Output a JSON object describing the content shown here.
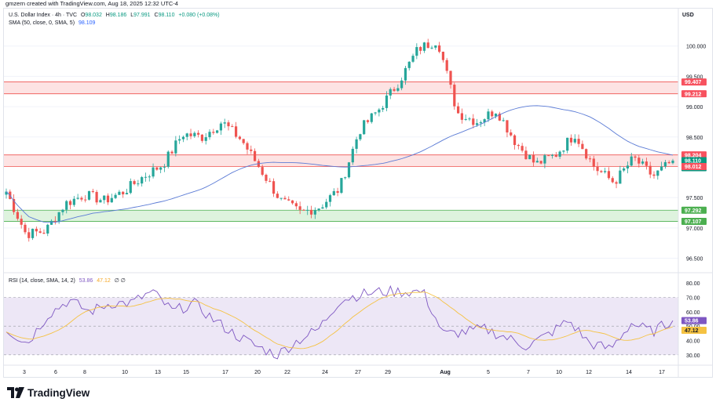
{
  "header": {
    "credit": "gmzern created with TradingView.com, Aug 18, 2025 12:32 UTC-4"
  },
  "legend": {
    "title": "U.S. Dollar Index · 4h · TVC",
    "o_label": "O",
    "o": "98.032",
    "h_label": "H",
    "h": "98.186",
    "l_label": "L",
    "l": "97.991",
    "c_label": "C",
    "c": "98.110",
    "change": "+0.080 (+0.08%)",
    "sma_label": "SMA (50, close, 0, SMA, 5)",
    "sma_value": "98.109",
    "rsi_label": "RSI (14, close, SMA, 14, 2)",
    "rsi_value": "53.86",
    "rsi_ma_value": "47.12",
    "rsi_extra": "∅ ∅"
  },
  "price_axis": {
    "currency": "USD",
    "ticks": [
      "100.000",
      "99.500",
      "99.000",
      "98.500",
      "97.500",
      "97.000",
      "96.500"
    ],
    "tags": [
      {
        "text": "99.407",
        "kind": "red"
      },
      {
        "text": "99.212",
        "kind": "red"
      },
      {
        "text": "98.204",
        "kind": "red"
      },
      {
        "text": "98.110",
        "kind": "last"
      },
      {
        "text": "27:46",
        "kind": "timer"
      },
      {
        "text": "98.012",
        "kind": "red"
      },
      {
        "text": "97.292",
        "kind": "green"
      },
      {
        "text": "97.107",
        "kind": "green"
      }
    ]
  },
  "rsi_axis": {
    "ticks": [
      "80.00",
      "70.00",
      "60.00",
      "50.00",
      "40.00",
      "30.00"
    ]
  },
  "time_axis": {
    "labels": [
      "3",
      "6",
      "8",
      "10",
      "13",
      "15",
      "17",
      "20",
      "22",
      "24",
      "27",
      "29",
      "Aug",
      "5",
      "7",
      "10",
      "12",
      "14",
      "17"
    ]
  },
  "colors": {
    "up": "#26a69a",
    "down": "#ef5350",
    "sma": "#5b7bd5",
    "rsi": "#7e57c2",
    "rsi_ma": "#f5c242",
    "resistance_fill": "#fcdcdc",
    "resistance_line": "#ef5350",
    "support_fill": "#d6f0d6",
    "support_line": "#4caf50",
    "rsi_band": "#ede7f6"
  },
  "zones": [
    {
      "kind": "resistance",
      "top": 99.407,
      "bottom": 99.212
    },
    {
      "kind": "resistance",
      "top": 98.204,
      "bottom": 98.012
    },
    {
      "kind": "support",
      "top": 97.292,
      "bottom": 97.107
    }
  ],
  "chart_data": {
    "type": "candlestick",
    "symbol": "U.S. Dollar Index",
    "interval": "4h",
    "ylim": [
      96.3,
      100.5
    ],
    "rsi_ylim": [
      25,
      85
    ],
    "anchors": [
      {
        "day": "Jul 2",
        "price": 97.6
      },
      {
        "day": "Jul 3",
        "price": 96.9
      },
      {
        "day": "Jul 4",
        "price": 96.95
      },
      {
        "day": "Jul 7",
        "price": 97.4
      },
      {
        "day": "Jul 8",
        "price": 97.55
      },
      {
        "day": "Jul 9",
        "price": 97.45
      },
      {
        "day": "Jul 10",
        "price": 97.6
      },
      {
        "day": "Jul 11",
        "price": 97.85
      },
      {
        "day": "Jul 14",
        "price": 98.05
      },
      {
        "day": "Jul 15",
        "price": 98.55
      },
      {
        "day": "Jul 16",
        "price": 98.5
      },
      {
        "day": "Jul 17",
        "price": 98.75
      },
      {
        "day": "Jul 18",
        "price": 98.45
      },
      {
        "day": "Jul 21",
        "price": 97.95
      },
      {
        "day": "Jul 22",
        "price": 97.45
      },
      {
        "day": "Jul 23",
        "price": 97.25
      },
      {
        "day": "Jul 24",
        "price": 97.35
      },
      {
        "day": "Jul 25",
        "price": 97.65
      },
      {
        "day": "Jul 28",
        "price": 98.6
      },
      {
        "day": "Jul 29",
        "price": 98.95
      },
      {
        "day": "Jul 30",
        "price": 99.4
      },
      {
        "day": "Jul 31",
        "price": 99.95
      },
      {
        "day": "Aug 1",
        "price": 100.1
      },
      {
        "day": "Aug 1 close",
        "price": 98.9
      },
      {
        "day": "Aug 4",
        "price": 98.75
      },
      {
        "day": "Aug 5",
        "price": 98.95
      },
      {
        "day": "Aug 6",
        "price": 98.4
      },
      {
        "day": "Aug 7",
        "price": 98.05
      },
      {
        "day": "Aug 8",
        "price": 98.2
      },
      {
        "day": "Aug 11",
        "price": 98.55
      },
      {
        "day": "Aug 12",
        "price": 98.0
      },
      {
        "day": "Aug 13",
        "price": 97.75
      },
      {
        "day": "Aug 14",
        "price": 98.15
      },
      {
        "day": "Aug 15",
        "price": 97.85
      },
      {
        "day": "Aug 18",
        "price": 98.11
      }
    ],
    "rsi": [
      {
        "day": "Jul 2",
        "value": 48
      },
      {
        "day": "Jul 3",
        "value": 38
      },
      {
        "day": "Jul 7",
        "value": 58
      },
      {
        "day": "Jul 8",
        "value": 68
      },
      {
        "day": "Jul 10",
        "value": 60
      },
      {
        "day": "Jul 11",
        "value": 66
      },
      {
        "day": "Jul 14",
        "value": 66
      },
      {
        "day": "Jul 15",
        "value": 74
      },
      {
        "day": "Jul 16",
        "value": 60
      },
      {
        "day": "Jul 17",
        "value": 66
      },
      {
        "day": "Jul 18",
        "value": 54
      },
      {
        "day": "Jul 21",
        "value": 44
      },
      {
        "day": "Jul 22",
        "value": 36
      },
      {
        "day": "Jul 23",
        "value": 30
      },
      {
        "day": "Jul 24",
        "value": 40
      },
      {
        "day": "Jul 25",
        "value": 48
      },
      {
        "day": "Jul 28",
        "value": 68
      },
      {
        "day": "Jul 29",
        "value": 72
      },
      {
        "day": "Jul 30",
        "value": 74
      },
      {
        "day": "Jul 31",
        "value": 74
      },
      {
        "day": "Aug 1",
        "value": 74
      },
      {
        "day": "Aug 1 close",
        "value": 44
      },
      {
        "day": "Aug 4",
        "value": 46
      },
      {
        "day": "Aug 5",
        "value": 48
      },
      {
        "day": "Aug 6",
        "value": 42
      },
      {
        "day": "Aug 7",
        "value": 36
      },
      {
        "day": "Aug 8",
        "value": 44
      },
      {
        "day": "Aug 11",
        "value": 54
      },
      {
        "day": "Aug 12",
        "value": 38
      },
      {
        "day": "Aug 13",
        "value": 34
      },
      {
        "day": "Aug 14",
        "value": 52
      },
      {
        "day": "Aug 15",
        "value": 46
      },
      {
        "day": "Aug 18",
        "value": 53.86
      }
    ]
  }
}
